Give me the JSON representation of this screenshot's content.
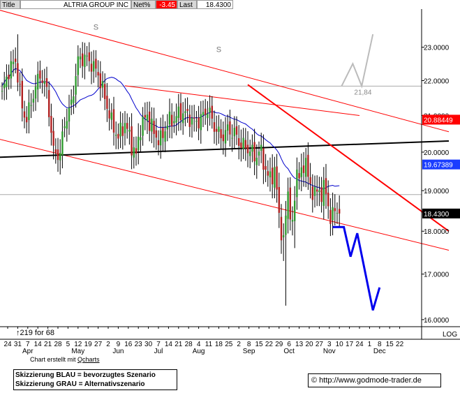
{
  "header": {
    "title_label": "Title",
    "name": "ALTRIA GROUP INC",
    "change_label": "Net%",
    "change_value": "-3.45",
    "last_label": "Last",
    "last_value": "18.4300"
  },
  "notes": {
    "shares_note": "↑219 for 68",
    "credit_prefix": "Chart erstellt mit ",
    "credit_brand": "Qcharts",
    "log_label": "LOG",
    "copyright": "© http://www.godmode-trader.de"
  },
  "legend": {
    "line1": "Skizzierung BLAU = bevorzugtes Szenario",
    "line2": "Skizzierung GRAU = Alternativszenario"
  },
  "chart_data": {
    "type": "candlestick",
    "title": "ALTRIA GROUP INC",
    "y_scale": "log",
    "ylim": [
      15.85,
      24.2
    ],
    "y_ticks": [
      {
        "value": 23.0,
        "label": "23.0000"
      },
      {
        "value": 22.0,
        "label": "22.0000"
      },
      {
        "value": 21.0,
        "label": "21.0000"
      },
      {
        "value": 20.0,
        "label": "20.0000"
      },
      {
        "value": 19.0,
        "label": "19.0000"
      },
      {
        "value": 18.0,
        "label": "18.0000"
      },
      {
        "value": 17.0,
        "label": "17.0000"
      },
      {
        "value": 16.0,
        "label": "16.0000"
      }
    ],
    "price_tags": [
      {
        "value": 20.88449,
        "label": "20.88449",
        "color": "#ff0000"
      },
      {
        "value": 19.67389,
        "label": "19.67389",
        "color": "#1a3dff"
      },
      {
        "value": 18.43,
        "label": "18.4300",
        "color": "#000000"
      }
    ],
    "x_tick_labels": [
      "24",
      "31",
      "7",
      "14",
      "21",
      "28",
      "5",
      "12",
      "19",
      "27",
      "2",
      "9",
      "16",
      "23",
      "30",
      "7",
      "14",
      "21",
      "28",
      "4",
      "11",
      "18",
      "25",
      "2",
      "8",
      "15",
      "22",
      "29",
      "6",
      "13",
      "20",
      "27",
      "3",
      "10",
      "17",
      "24",
      "1",
      "8",
      "15",
      "22"
    ],
    "month_labels": [
      {
        "label": "Apr",
        "index": 2
      },
      {
        "label": "May",
        "index": 7
      },
      {
        "label": "Jun",
        "index": 11
      },
      {
        "label": "Jul",
        "index": 15
      },
      {
        "label": "Aug",
        "index": 19
      },
      {
        "label": "Sep",
        "index": 24
      },
      {
        "label": "Oct",
        "index": 28
      },
      {
        "label": "Nov",
        "index": 32
      },
      {
        "label": "Dec",
        "index": 37
      }
    ],
    "bars_count": 152,
    "close_anchors": [
      [
        0,
        21.6
      ],
      [
        3,
        22.3
      ],
      [
        6,
        22.6
      ],
      [
        9,
        21.2
      ],
      [
        11,
        20.9
      ],
      [
        14,
        21.6
      ],
      [
        17,
        22.2
      ],
      [
        20,
        21.7
      ],
      [
        23,
        20.0
      ],
      [
        26,
        19.95
      ],
      [
        28,
        20.8
      ],
      [
        31,
        21.3
      ],
      [
        34,
        22.6
      ],
      [
        37,
        22.7
      ],
      [
        40,
        22.5
      ],
      [
        43,
        22.2
      ],
      [
        46,
        21.5
      ],
      [
        49,
        20.8
      ],
      [
        52,
        20.4
      ],
      [
        55,
        20.8
      ],
      [
        58,
        20.2
      ],
      [
        60,
        19.9
      ],
      [
        62,
        20.7
      ],
      [
        65,
        21.0
      ],
      [
        68,
        20.5
      ],
      [
        71,
        20.3
      ],
      [
        74,
        20.8
      ],
      [
        77,
        20.9
      ],
      [
        80,
        21.1
      ],
      [
        83,
        21.0
      ],
      [
        86,
        20.8
      ],
      [
        89,
        20.9
      ],
      [
        92,
        21.2
      ],
      [
        95,
        20.7
      ],
      [
        98,
        20.4
      ],
      [
        101,
        20.6
      ],
      [
        104,
        20.5
      ],
      [
        107,
        20.2
      ],
      [
        110,
        20.1
      ],
      [
        113,
        19.9
      ],
      [
        116,
        20.0
      ],
      [
        119,
        19.3
      ],
      [
        122,
        19.5
      ],
      [
        124,
        18.4
      ],
      [
        126,
        17.7
      ],
      [
        128,
        19.0
      ],
      [
        130,
        18.0
      ],
      [
        132,
        19.6
      ],
      [
        134,
        19.3
      ],
      [
        136,
        19.9
      ],
      [
        138,
        18.9
      ],
      [
        140,
        19.1
      ],
      [
        142,
        18.8
      ],
      [
        144,
        19.2
      ],
      [
        146,
        18.5
      ],
      [
        148,
        18.43
      ]
    ],
    "spikes": [
      {
        "index": 127,
        "low": 16.3
      },
      {
        "index": 126,
        "low": 17.3
      },
      {
        "index": 131,
        "low": 17.6
      },
      {
        "index": 7,
        "high": 23.4
      }
    ],
    "marks": [
      {
        "label": "S",
        "index": 42,
        "value": 23.55
      },
      {
        "label": "S",
        "index": 97,
        "value": 22.85
      }
    ],
    "reference_lines": [
      {
        "name": "horizontal",
        "y": 21.84,
        "color": "#aaaaaa"
      },
      {
        "name": "horizontal",
        "y": 18.9,
        "color": "#aaaaaa"
      }
    ],
    "trend_lines": [
      {
        "color": "#ff0000",
        "width": 1,
        "from": [
          -8,
          24.3
        ],
        "to": [
          200,
          20.55
        ]
      },
      {
        "color": "#ff0000",
        "width": 1,
        "from": [
          -8,
          20.45
        ],
        "to": [
          200,
          17.55
        ]
      },
      {
        "color": "#000000",
        "width": 2,
        "from": [
          -8,
          19.85
        ],
        "to": [
          200,
          20.3
        ]
      },
      {
        "color": "#ff0000",
        "width": 2,
        "from": [
          110,
          21.88
        ],
        "to": [
          200,
          18.0
        ]
      },
      {
        "color": "#ff0000",
        "width": 1,
        "from": [
          55,
          21.85
        ],
        "to": [
          160,
          21.0
        ]
      }
    ],
    "scenarios": [
      {
        "name": "BLAU",
        "color": "#0000ee",
        "points": [
          [
            148,
            18.1
          ],
          [
            153,
            18.1
          ],
          [
            156,
            17.4
          ],
          [
            159,
            17.95
          ],
          [
            166,
            16.2
          ],
          [
            169,
            16.7
          ]
        ]
      },
      {
        "name": "GRAU",
        "color": "#bbbbbb",
        "label": "21,84",
        "points": [
          [
            152,
            21.84
          ],
          [
            157,
            22.5
          ],
          [
            161,
            21.84
          ],
          [
            166,
            23.4
          ]
        ]
      }
    ],
    "ma_color": "#0000cc",
    "grid": false
  }
}
